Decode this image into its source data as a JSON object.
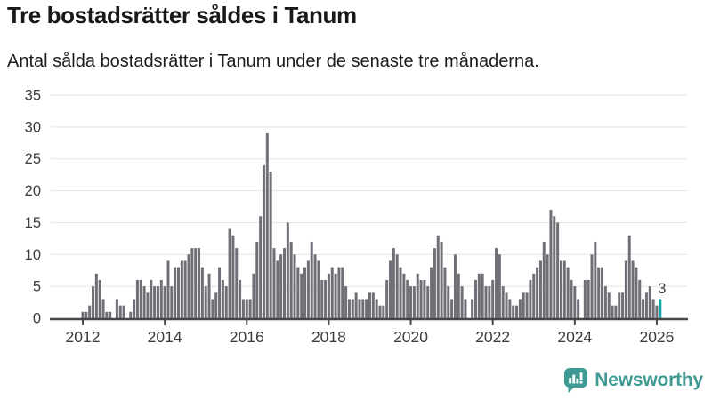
{
  "header": {
    "title": "Tre bostadsrätter såldes i Tanum",
    "subtitle": "Antal sålda bostadsrätter i Tanum under de senaste tre månaderna."
  },
  "chart_data": {
    "type": "bar",
    "title": "Tre bostadsrätter såldes i Tanum",
    "subtitle": "Antal sålda bostadsrätter i Tanum under de senaste tre månaderna.",
    "x_start_month": "2012-01",
    "x_end_month": "2026-02",
    "values": [
      1,
      1,
      2,
      5,
      7,
      6,
      3,
      1,
      1,
      0,
      3,
      2,
      2,
      0,
      1,
      3,
      6,
      6,
      5,
      4,
      6,
      5,
      5,
      6,
      5,
      9,
      5,
      8,
      8,
      9,
      9,
      10,
      11,
      11,
      11,
      8,
      5,
      7,
      3,
      4,
      8,
      6,
      5,
      14,
      13,
      11,
      6,
      3,
      3,
      3,
      7,
      12,
      16,
      24,
      29,
      23,
      11,
      9,
      10,
      11,
      15,
      12,
      10,
      8,
      7,
      8,
      9,
      12,
      10,
      9,
      6,
      6,
      7,
      8,
      7,
      8,
      8,
      5,
      3,
      3,
      4,
      3,
      3,
      3,
      4,
      4,
      3,
      2,
      2,
      6,
      9,
      11,
      10,
      8,
      7,
      6,
      5,
      5,
      7,
      6,
      6,
      5,
      8,
      11,
      13,
      12,
      8,
      5,
      3,
      10,
      7,
      5,
      3,
      0,
      3,
      6,
      7,
      7,
      5,
      5,
      6,
      11,
      10,
      5,
      4,
      3,
      2,
      2,
      3,
      4,
      4,
      6,
      7,
      8,
      9,
      12,
      10,
      17,
      16,
      15,
      9,
      9,
      8,
      6,
      5,
      3,
      0,
      6,
      6,
      10,
      12,
      8,
      8,
      5,
      4,
      2,
      2,
      4,
      4,
      9,
      13,
      9,
      8,
      6,
      3,
      4,
      5,
      3,
      2,
      3
    ],
    "ylim": [
      0,
      35
    ],
    "y_ticks": [
      0,
      5,
      10,
      15,
      20,
      25,
      30,
      35
    ],
    "x_tick_years": [
      2012,
      2014,
      2016,
      2018,
      2020,
      2022,
      2024,
      2026
    ],
    "grid": "horizontal",
    "legend": "none",
    "bar_color": "#6f6f77",
    "highlight_color": "#13a3aa",
    "highlight_index": 169,
    "last_value_label": "3"
  },
  "footer": {
    "brand": "Newsworthy",
    "brand_color": "#3f9a93"
  }
}
